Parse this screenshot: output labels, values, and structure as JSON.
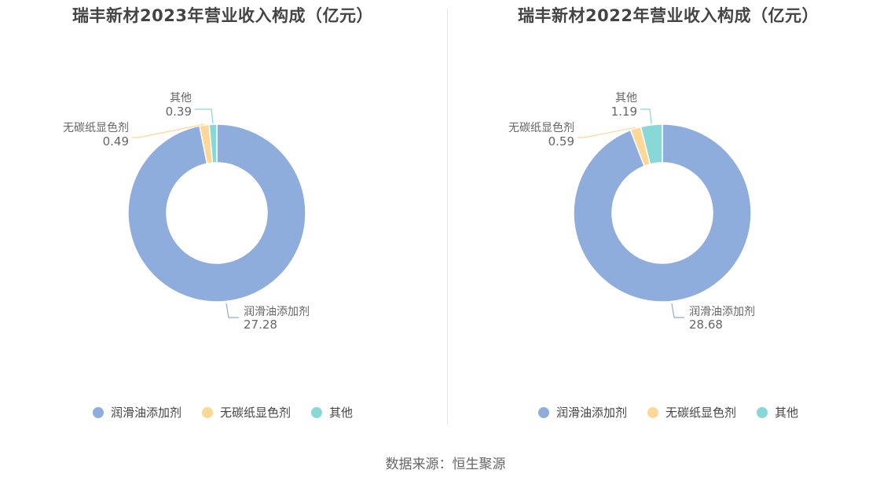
{
  "colors": {
    "lubricant": "#8eaddc",
    "carbonless": "#fcd797",
    "other": "#88d8d7"
  },
  "source": "数据来源：恒生聚源",
  "chart_data": [
    {
      "type": "pie",
      "title": "瑞丰新材2023年营业收入构成（亿元）",
      "slices": [
        {
          "name": "润滑油添加剂",
          "value": 27.28,
          "value_label": "27.28"
        },
        {
          "name": "无碳纸显色剂",
          "value": 0.49,
          "value_label": "0.49"
        },
        {
          "name": "其他",
          "value": 0.39,
          "value_label": "0.39"
        }
      ],
      "legend": [
        "润滑油添加剂",
        "无碳纸显色剂",
        "其他"
      ],
      "legend_position": "bottom"
    },
    {
      "type": "pie",
      "title": "瑞丰新材2022年营业收入构成（亿元）",
      "slices": [
        {
          "name": "润滑油添加剂",
          "value": 28.68,
          "value_label": "28.68"
        },
        {
          "name": "无碳纸显色剂",
          "value": 0.59,
          "value_label": "0.59"
        },
        {
          "name": "其他",
          "value": 1.19,
          "value_label": "1.19"
        }
      ],
      "legend": [
        "润滑油添加剂",
        "无碳纸显色剂",
        "其他"
      ],
      "legend_position": "bottom"
    }
  ]
}
